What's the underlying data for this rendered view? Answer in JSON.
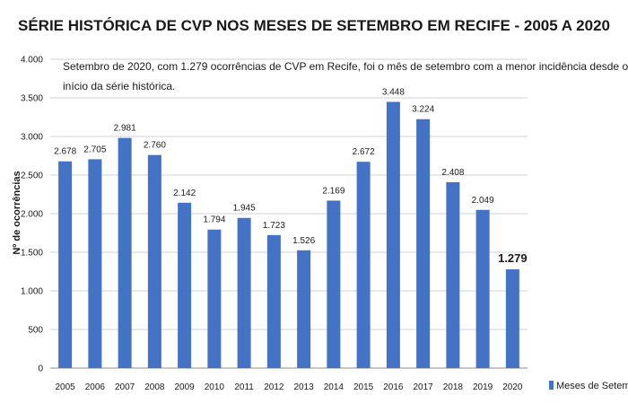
{
  "chart_data": {
    "type": "bar",
    "title": "SÉRIE HISTÓRICA DE CVP NOS MESES DE SETEMBRO EM RECIFE - 2005 A 2020",
    "annotation": [
      "Setembro de 2020, com 1.279 ocorrências de CVP em Recife, foi o mês de setembro com a menor incidência desde o",
      "início da série histórica."
    ],
    "ylabel": "Nº de ocorrências",
    "xlabel": "",
    "ylim": [
      0,
      4000
    ],
    "yticks": [
      0,
      500,
      1000,
      1500,
      2000,
      2500,
      3000,
      3500,
      4000
    ],
    "ytick_labels": [
      "0",
      "500",
      "1.000",
      "1.500",
      "2.000",
      "2.500",
      "3.000",
      "3.500",
      "4.000"
    ],
    "categories": [
      "2005",
      "2006",
      "2007",
      "2008",
      "2009",
      "2010",
      "2011",
      "2012",
      "2013",
      "2014",
      "2015",
      "2016",
      "2017",
      "2018",
      "2019",
      "2020"
    ],
    "series": [
      {
        "name": "Meses de Setembro",
        "color": "#4472c4",
        "values": [
          2678,
          2705,
          2981,
          2760,
          2142,
          1794,
          1945,
          1723,
          1526,
          2169,
          2672,
          3448,
          3224,
          2408,
          2049,
          1279
        ],
        "value_labels": [
          "2.678",
          "2.705",
          "2.981",
          "2.760",
          "2.142",
          "1.794",
          "1.945",
          "1.723",
          "1.526",
          "2.169",
          "2.672",
          "3.448",
          "3.224",
          "2.408",
          "2.049",
          "1.279"
        ]
      }
    ],
    "grid": true,
    "legend_position": "bottom-right"
  }
}
